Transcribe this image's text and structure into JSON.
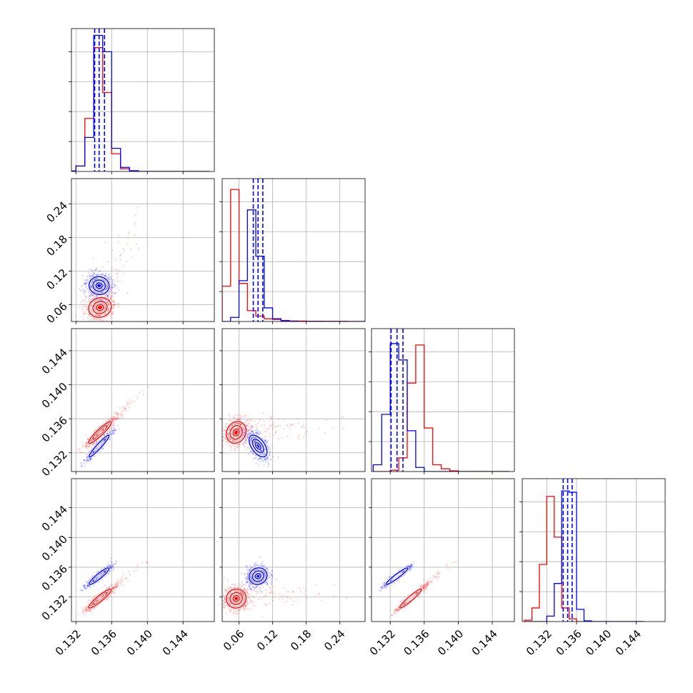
{
  "chart_data": {
    "type": "scatter",
    "subtype": "corner-plot",
    "title": "",
    "parameters": [
      "",
      "",
      "",
      ""
    ],
    "grid": true,
    "series": [
      {
        "name": "",
        "color": "#ff0000",
        "mean": [
          0.1347,
          0.055,
          0.1344,
          0.1318
        ],
        "sd": [
          0.0008,
          0.011,
          0.0008,
          0.0008
        ],
        "histograms": [
          {
            "bin_edges": [
              0.131,
              0.132,
              0.133,
              0.134,
              0.135,
              0.136,
              0.137,
              0.138,
              0.139,
              0.14,
              0.141,
              0.142,
              0.143,
              0.144,
              0.145,
              0.146,
              0.147
            ],
            "counts": [
              0.004,
              0.04,
              0.39,
              0.91,
              0.58,
              0.13,
              0.02,
              0.005,
              0.0,
              0.0,
              0.0,
              0.0,
              0.0,
              0.0,
              0.0,
              0.0
            ]
          },
          {
            "bin_edges": [
              0.03,
              0.045,
              0.06,
              0.075,
              0.09,
              0.105,
              0.12,
              0.135,
              0.15,
              0.165,
              0.18,
              0.195,
              0.21,
              0.225,
              0.24,
              0.255,
              0.27,
              0.285
            ],
            "counts": [
              0.26,
              0.97,
              0.28,
              0.08,
              0.04,
              0.02,
              0.015,
              0.008,
              0.004,
              0.003,
              0.002,
              0.002,
              0.001,
              0.001,
              0.001,
              0.0,
              0.0
            ]
          },
          {
            "bin_edges": [
              0.13,
              0.131,
              0.132,
              0.133,
              0.134,
              0.135,
              0.136,
              0.137,
              0.138,
              0.139,
              0.14,
              0.141,
              0.142,
              0.143,
              0.144,
              0.145,
              0.146
            ],
            "counts": [
              0.0,
              0.0,
              0.01,
              0.1,
              0.65,
              0.93,
              0.32,
              0.05,
              0.02,
              0.005,
              0.0,
              0.0,
              0.0,
              0.0,
              0.0,
              0.0
            ]
          },
          {
            "bin_edges": [
              0.129,
              0.13,
              0.131,
              0.132,
              0.133,
              0.134,
              0.135,
              0.136,
              0.137,
              0.138,
              0.139,
              0.14,
              0.141,
              0.142,
              0.143,
              0.144,
              0.145
            ],
            "counts": [
              0.01,
              0.1,
              0.42,
              0.92,
              0.62,
              0.1,
              0.02,
              0.0,
              0.0,
              0.0,
              0.0,
              0.0,
              0.0,
              0.0,
              0.0,
              0.0
            ]
          }
        ],
        "quantiles": []
      },
      {
        "name": "",
        "color": "#0000ff",
        "mean": [
          0.1346,
          0.094,
          0.1328,
          0.1348
        ],
        "sd": [
          0.0007,
          0.01,
          0.0008,
          0.0007
        ],
        "histograms": [
          {
            "bin_edges": [
              0.131,
              0.132,
              0.133,
              0.134,
              0.135,
              0.136,
              0.137,
              0.138,
              0.139,
              0.14,
              0.141,
              0.142,
              0.143,
              0.144,
              0.145,
              0.146,
              0.147
            ],
            "counts": [
              0.003,
              0.04,
              0.25,
              1.0,
              0.88,
              0.17,
              0.03,
              0.005,
              0.0,
              0.0,
              0.0,
              0.0,
              0.0,
              0.0,
              0.0,
              0.0
            ]
          },
          {
            "bin_edges": [
              0.03,
              0.045,
              0.06,
              0.075,
              0.09,
              0.105,
              0.12,
              0.135,
              0.15,
              0.165,
              0.18,
              0.195,
              0.21,
              0.225,
              0.24,
              0.255,
              0.27,
              0.285
            ],
            "counts": [
              0.0,
              0.03,
              0.3,
              0.82,
              0.48,
              0.1,
              0.02,
              0.005,
              0.002,
              0.0,
              0.0,
              0.0,
              0.0,
              0.0,
              0.0,
              0.0,
              0.0
            ]
          },
          {
            "bin_edges": [
              0.13,
              0.131,
              0.132,
              0.133,
              0.134,
              0.135,
              0.136,
              0.137,
              0.138,
              0.139,
              0.14,
              0.141,
              0.142,
              0.143,
              0.144,
              0.145,
              0.146
            ],
            "counts": [
              0.05,
              0.42,
              0.94,
              0.82,
              0.3,
              0.03,
              0.0,
              0.0,
              0.0,
              0.0,
              0.0,
              0.0,
              0.0,
              0.0,
              0.0,
              0.0
            ]
          },
          {
            "bin_edges": [
              0.129,
              0.13,
              0.131,
              0.132,
              0.133,
              0.134,
              0.135,
              0.136,
              0.137,
              0.138,
              0.139,
              0.14,
              0.141,
              0.142,
              0.143,
              0.144,
              0.145
            ],
            "counts": [
              0.0,
              0.0,
              0.0,
              0.04,
              0.28,
              0.96,
              0.95,
              0.09,
              0.005,
              0.0,
              0.0,
              0.0,
              0.0,
              0.0,
              0.0,
              0.0
            ]
          }
        ],
        "quantiles": [
          [
            0.1341,
            0.1346,
            0.1352
          ],
          [
            0.0855,
            0.094,
            0.1025
          ],
          [
            0.1321,
            0.1328,
            0.1335
          ],
          [
            0.1342,
            0.1348,
            0.1354
          ]
        ]
      }
    ],
    "axes": [
      {
        "lim": [
          0.1315,
          0.1475
        ],
        "ticks": [
          0.132,
          0.136,
          0.14,
          0.144
        ],
        "tick_labels": [
          "0.132",
          "0.136",
          "0.140",
          "0.144"
        ]
      },
      {
        "lim": [
          0.03,
          0.285
        ],
        "ticks": [
          0.06,
          0.12,
          0.18,
          0.24
        ],
        "tick_labels": [
          "0.06",
          "0.12",
          "0.18",
          "0.24"
        ]
      },
      {
        "lim": [
          0.1298,
          0.1466
        ],
        "ticks": [
          0.132,
          0.136,
          0.14,
          0.144
        ],
        "tick_labels": [
          "0.132",
          "0.136",
          "0.140",
          "0.144"
        ]
      },
      {
        "lim": [
          0.1287,
          0.1479
        ],
        "ticks": [
          0.132,
          0.136,
          0.14,
          0.144
        ],
        "tick_labels": [
          "0.132",
          "0.136",
          "0.140",
          "0.144"
        ]
      }
    ],
    "diag_ymax": 1.05,
    "diag_ticks": [
      0.22,
      0.44,
      0.66,
      0.88
    ]
  }
}
